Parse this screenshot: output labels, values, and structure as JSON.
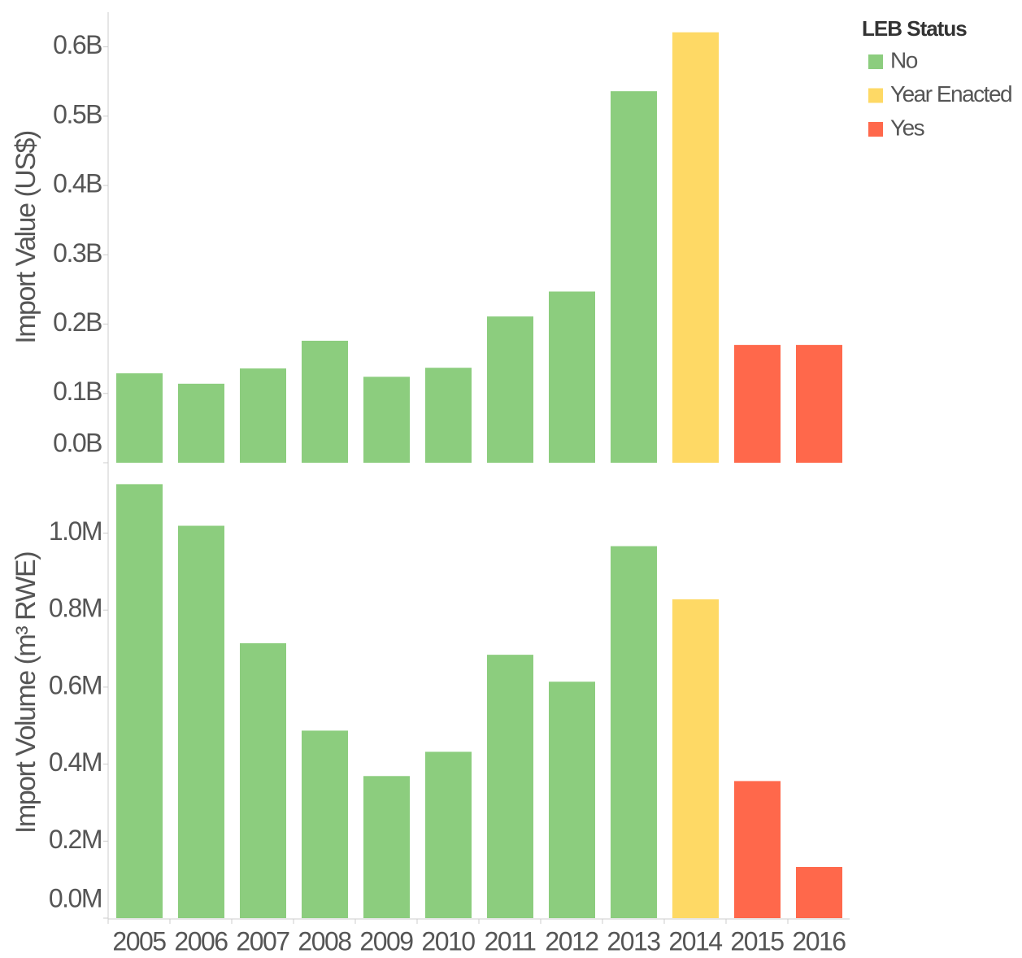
{
  "chart_data": [
    {
      "type": "bar",
      "y_label": "Import Value (US$)",
      "values": [
        129000000,
        114000000,
        136000000,
        176000000,
        124000000,
        137000000,
        211000000,
        247000000,
        536000000,
        621000000,
        170000000,
        170000000
      ],
      "colors": [
        "#8ccd7e",
        "#8ccd7e",
        "#8ccd7e",
        "#8ccd7e",
        "#8ccd7e",
        "#8ccd7e",
        "#8ccd7e",
        "#8ccd7e",
        "#8ccd7e",
        "#fed965",
        "#ff684b",
        "#ff684b"
      ],
      "ylim": [
        0,
        650000000
      ],
      "yticks": [
        {
          "value": 0,
          "label": "0.0B"
        },
        {
          "value": 100000000,
          "label": "0.1B"
        },
        {
          "value": 200000000,
          "label": "0.2B"
        },
        {
          "value": 300000000,
          "label": "0.3B"
        },
        {
          "value": 400000000,
          "label": "0.4B"
        },
        {
          "value": 500000000,
          "label": "0.5B"
        },
        {
          "value": 600000000,
          "label": "0.6B"
        }
      ]
    },
    {
      "type": "bar",
      "y_label": "Import Volume (m³ RWE)",
      "categories": [
        "2005",
        "2006",
        "2007",
        "2008",
        "2009",
        "2010",
        "2011",
        "2012",
        "2013",
        "2014",
        "2015",
        "2016"
      ],
      "values": [
        1127000,
        1019000,
        714000,
        487000,
        369000,
        432000,
        684000,
        614000,
        966000,
        828000,
        356000,
        133000
      ],
      "colors": [
        "#8ccd7e",
        "#8ccd7e",
        "#8ccd7e",
        "#8ccd7e",
        "#8ccd7e",
        "#8ccd7e",
        "#8ccd7e",
        "#8ccd7e",
        "#8ccd7e",
        "#fed965",
        "#ff684b",
        "#ff684b"
      ],
      "ylim": [
        0,
        1170000
      ],
      "yticks": [
        {
          "value": 0,
          "label": "0.0M"
        },
        {
          "value": 200000,
          "label": "0.2M"
        },
        {
          "value": 400000,
          "label": "0.4M"
        },
        {
          "value": 600000,
          "label": "0.6M"
        },
        {
          "value": 800000,
          "label": "0.8M"
        },
        {
          "value": 1000000,
          "label": "1.0M"
        }
      ]
    }
  ],
  "legend": {
    "title": "LEB Status",
    "items": [
      {
        "name": "No",
        "color": "#8ccd7e"
      },
      {
        "name": "Year Enacted",
        "color": "#fed965"
      },
      {
        "name": "Yes",
        "color": "#ff684b"
      }
    ]
  }
}
